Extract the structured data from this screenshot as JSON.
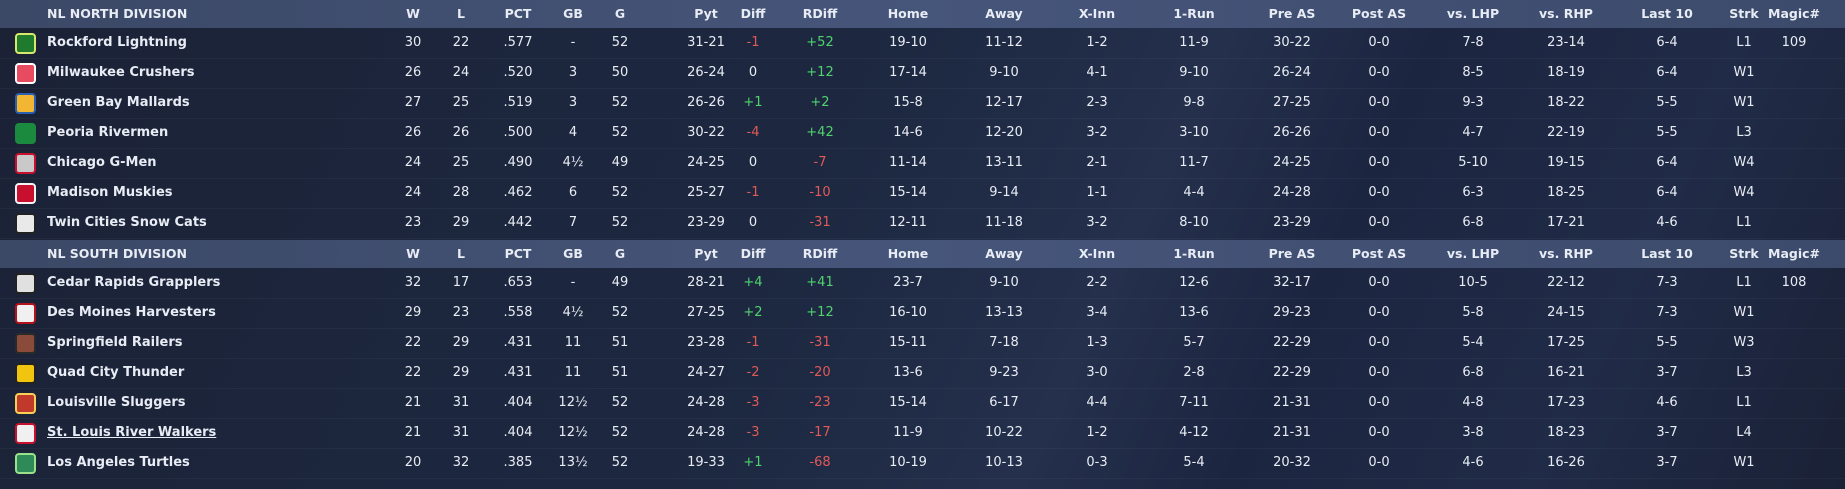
{
  "columns": [
    "W",
    "L",
    "PCT",
    "GB",
    "G",
    "Pyt",
    "Diff",
    "RDiff",
    "Home",
    "Away",
    "X-Inn",
    "1-Run",
    "Pre AS",
    "Post AS",
    "vs. LHP",
    "vs. RHP",
    "Last 10",
    "Strk",
    "Magic#"
  ],
  "divisions": [
    {
      "title": "NL NORTH DIVISION",
      "rows": [
        {
          "team": "Rockford Lightning",
          "cells": [
            "30",
            "22",
            ".577",
            "-",
            "52",
            "31-21",
            "-1",
            "+52",
            "19-10",
            "11-12",
            "1-2",
            "11-9",
            "30-22",
            "0-0",
            "7-8",
            "23-14",
            "6-4",
            "L1",
            "109"
          ]
        },
        {
          "team": "Milwaukee Crushers",
          "cells": [
            "26",
            "24",
            ".520",
            "3",
            "50",
            "26-24",
            "0",
            "+12",
            "17-14",
            "9-10",
            "4-1",
            "9-10",
            "26-24",
            "0-0",
            "8-5",
            "18-19",
            "6-4",
            "W1"
          ]
        },
        {
          "team": "Green Bay  Mallards",
          "cells": [
            "27",
            "25",
            ".519",
            "3",
            "52",
            "26-26",
            "+1",
            "+2",
            "15-8",
            "12-17",
            "2-3",
            "9-8",
            "27-25",
            "0-0",
            "9-3",
            "18-22",
            "5-5",
            "W1"
          ]
        },
        {
          "team": "Peoria Rivermen",
          "cells": [
            "26",
            "26",
            ".500",
            "4",
            "52",
            "30-22",
            "-4",
            "+42",
            "14-6",
            "12-20",
            "3-2",
            "3-10",
            "26-26",
            "0-0",
            "4-7",
            "22-19",
            "5-5",
            "L3"
          ]
        },
        {
          "team": "Chicago G-Men",
          "cells": [
            "24",
            "25",
            ".490",
            "4½",
            "49",
            "24-25",
            "0",
            "-7",
            "11-14",
            "13-11",
            "2-1",
            "11-7",
            "24-25",
            "0-0",
            "5-10",
            "19-15",
            "6-4",
            "W4"
          ]
        },
        {
          "team": "Madison Muskies",
          "cells": [
            "24",
            "28",
            ".462",
            "6",
            "52",
            "25-27",
            "-1",
            "-10",
            "15-14",
            "9-14",
            "1-1",
            "4-4",
            "24-28",
            "0-0",
            "6-3",
            "18-25",
            "6-4",
            "W4"
          ]
        },
        {
          "team": "Twin Cities Snow Cats",
          "cells": [
            "23",
            "29",
            ".442",
            "7",
            "52",
            "23-29",
            "0",
            "-31",
            "12-11",
            "11-18",
            "3-2",
            "8-10",
            "23-29",
            "0-0",
            "6-8",
            "17-21",
            "4-6",
            "L1"
          ]
        }
      ]
    },
    {
      "title": "NL SOUTH DIVISION",
      "rows": [
        {
          "team": "Cedar Rapids Grapplers",
          "cells": [
            "32",
            "17",
            ".653",
            "-",
            "49",
            "28-21",
            "+4",
            "+41",
            "23-7",
            "9-10",
            "2-2",
            "12-6",
            "32-17",
            "0-0",
            "10-5",
            "22-12",
            "7-3",
            "L1",
            "108"
          ]
        },
        {
          "team": "Des Moines Harvesters",
          "cells": [
            "29",
            "23",
            ".558",
            "4½",
            "52",
            "27-25",
            "+2",
            "+12",
            "16-10",
            "13-13",
            "3-4",
            "13-6",
            "29-23",
            "0-0",
            "5-8",
            "24-15",
            "7-3",
            "W1"
          ]
        },
        {
          "team": "Springfield Railers",
          "cells": [
            "22",
            "29",
            ".431",
            "11",
            "51",
            "23-28",
            "-1",
            "-31",
            "15-11",
            "7-18",
            "1-3",
            "5-7",
            "22-29",
            "0-0",
            "5-4",
            "17-25",
            "5-5",
            "W3"
          ]
        },
        {
          "team": "Quad City Thunder",
          "cells": [
            "22",
            "29",
            ".431",
            "11",
            "51",
            "24-27",
            "-2",
            "-20",
            "13-6",
            "9-23",
            "3-0",
            "2-8",
            "22-29",
            "0-0",
            "6-8",
            "16-21",
            "3-7",
            "L3"
          ]
        },
        {
          "team": "Louisville Sluggers",
          "cells": [
            "21",
            "31",
            ".404",
            "12½",
            "52",
            "24-28",
            "-3",
            "-23",
            "15-14",
            "6-17",
            "4-4",
            "7-11",
            "21-31",
            "0-0",
            "4-8",
            "17-23",
            "4-6",
            "L1"
          ]
        },
        {
          "team": "St. Louis River Walkers",
          "cells": [
            "21",
            "31",
            ".404",
            "12½",
            "52",
            "24-28",
            "-3",
            "-17",
            "11-9",
            "10-22",
            "1-2",
            "4-12",
            "21-31",
            "0-0",
            "3-8",
            "18-23",
            "3-7",
            "L4"
          ]
        },
        {
          "team": "Los Angeles Turtles",
          "cells": [
            "20",
            "32",
            ".385",
            "13½",
            "52",
            "19-33",
            "+1",
            "-68",
            "10-19",
            "10-13",
            "0-3",
            "5-4",
            "20-32",
            "0-0",
            "4-6",
            "16-26",
            "3-7",
            "W1"
          ]
        }
      ]
    }
  ]
}
